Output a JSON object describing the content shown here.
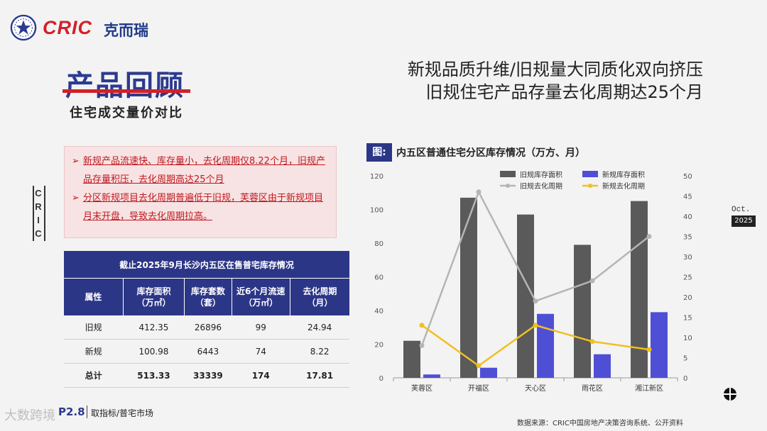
{
  "brand": {
    "word": "CRIC",
    "cn": "克而瑞",
    "logo_icon": "star-badge-icon"
  },
  "section": {
    "title": "产品回顾",
    "subtitle": "住宅成交量价对比"
  },
  "headline": {
    "line1": "新规品质升维/旧规量大同质化双向挤压",
    "line2": "旧规住宅产品存量去化周期达25个月"
  },
  "side_label": "CRIC",
  "bullets": [
    {
      "marker": "➢",
      "text": "新规产品流速快、库存量小，去化周期仅8.22个月，旧规产品存量积压，去化周期高达25个月"
    },
    {
      "marker": "➢",
      "text": "分区新规项目去化周期普遍低于旧规，芙蓉区由于新规项目月末开盘，导致去化周期拉高。"
    }
  ],
  "table": {
    "caption": "截止2025年9月长沙内五区在售普宅库存情况",
    "headers": [
      "属性",
      "库存面积\n（万㎡）",
      "库存套数\n（套）",
      "近6个月流速\n（万㎡）",
      "去化周期\n（月）"
    ],
    "rows": [
      [
        "旧规",
        "412.35",
        "26896",
        "99",
        "24.94"
      ],
      [
        "新规",
        "100.98",
        "6443",
        "74",
        "8.22"
      ],
      [
        "总计",
        "513.33",
        "33339",
        "174",
        "17.81"
      ]
    ]
  },
  "footer": {
    "page": "P2.8",
    "text": "取指标/普宅市场",
    "watermark": "大数跨境",
    "source": "数据来源：CRIC中国房地产决策咨询系统、公开资料"
  },
  "date_badge": {
    "month": "Oct.",
    "year": "2025"
  },
  "figure": {
    "icon_label": "图:",
    "title": "内五区普通住宅分区库存情况（万方、月）"
  },
  "colors": {
    "navy": "#2c3686",
    "red": "#d32027",
    "bar_old": "#5a5a5a",
    "bar_new": "#4f4fd6",
    "line_old": "#b5b5b5",
    "line_new": "#f0c020"
  },
  "chart_data": {
    "type": "bar",
    "categories": [
      "芙蓉区",
      "开福区",
      "天心区",
      "雨花区",
      "湘江新区"
    ],
    "series": [
      {
        "name": "旧规库存面积",
        "type": "bar",
        "axis": "left",
        "values": [
          22,
          107,
          97,
          79,
          105
        ]
      },
      {
        "name": "新规库存面积",
        "type": "bar",
        "axis": "left",
        "values": [
          2,
          6,
          38,
          14,
          39
        ]
      },
      {
        "name": "旧规去化周期",
        "type": "line",
        "axis": "right",
        "values": [
          8,
          46,
          19,
          24,
          35
        ]
      },
      {
        "name": "新规去化周期",
        "type": "line",
        "axis": "right",
        "values": [
          13,
          3,
          13,
          9,
          7
        ]
      }
    ],
    "y_left": {
      "min": 0,
      "max": 120,
      "ticks": [
        0,
        20,
        40,
        60,
        80,
        100,
        120
      ]
    },
    "y_right": {
      "min": 0,
      "max": 50,
      "ticks": [
        0,
        5,
        10,
        15,
        20,
        25,
        30,
        35,
        40,
        45,
        50
      ]
    },
    "legend_position": "top-right",
    "grid": false
  }
}
